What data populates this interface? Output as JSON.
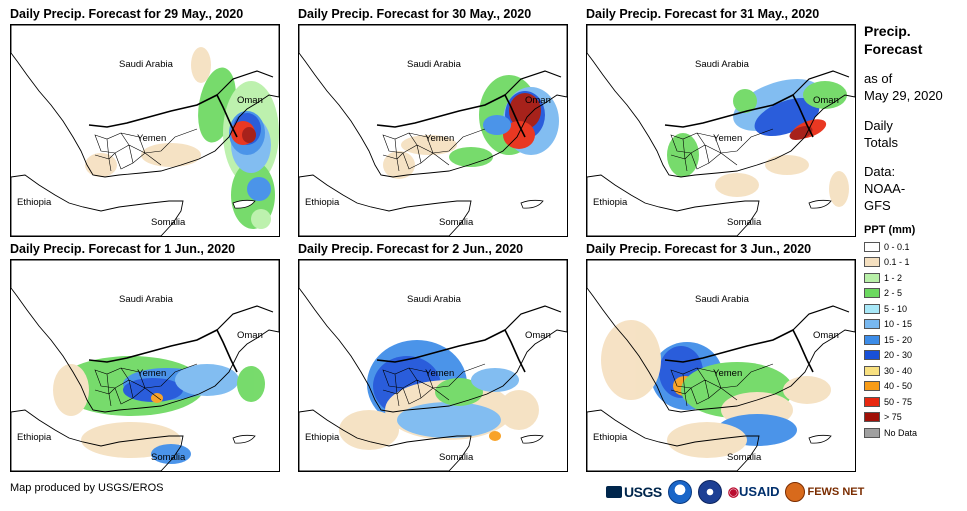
{
  "panels": [
    {
      "title": "Daily Precip. Forecast for 29 May., 2020",
      "day": "d29"
    },
    {
      "title": "Daily Precip. Forecast for 30 May., 2020",
      "day": "d30"
    },
    {
      "title": "Daily Precip. Forecast for 31 May., 2020",
      "day": "d31"
    },
    {
      "title": "Daily Precip. Forecast for 1 Jun., 2020",
      "day": "d1"
    },
    {
      "title": "Daily Precip. Forecast for 2 Jun., 2020",
      "day": "d2"
    },
    {
      "title": "Daily Precip. Forecast for 3 Jun., 2020",
      "day": "d3"
    }
  ],
  "map_labels": {
    "saudi": "Saudi Arabia",
    "oman": "Oman",
    "yemen": "Yemen",
    "ethiopia": "Ethiopia",
    "somalia": "Somalia"
  },
  "sidebar": {
    "title_line1": "Precip.",
    "title_line2": "Forecast",
    "asof_line1": "as of",
    "asof_line2": "May 29, 2020",
    "totals_line1": "Daily",
    "totals_line2": "Totals",
    "data_line1": "Data:",
    "data_line2": "NOAA-",
    "data_line3": "GFS"
  },
  "legend": {
    "title": "PPT (mm)",
    "items": [
      {
        "label": "0 - 0.1",
        "color": "#ffffff"
      },
      {
        "label": "0.1 - 1",
        "color": "#f5e0c0"
      },
      {
        "label": "1 - 2",
        "color": "#b8f0a8"
      },
      {
        "label": "2 - 5",
        "color": "#6cd860"
      },
      {
        "label": "5 - 10",
        "color": "#a8e8f8"
      },
      {
        "label": "10 - 15",
        "color": "#78b8f0"
      },
      {
        "label": "15 - 20",
        "color": "#3c8ce8"
      },
      {
        "label": "20 - 30",
        "color": "#1850d8"
      },
      {
        "label": "30 - 40",
        "color": "#f8e080"
      },
      {
        "label": "40 - 50",
        "color": "#f89c18"
      },
      {
        "label": "50 - 75",
        "color": "#e82810"
      },
      {
        "label": "> 75",
        "color": "#a01008"
      },
      {
        "label": "No Data",
        "color": "#a0a0a0"
      }
    ]
  },
  "credit": "Map produced by USGS/EROS",
  "logos": {
    "usgs": "USGS",
    "usaid": "USAID",
    "fews": "FEWS NET"
  }
}
